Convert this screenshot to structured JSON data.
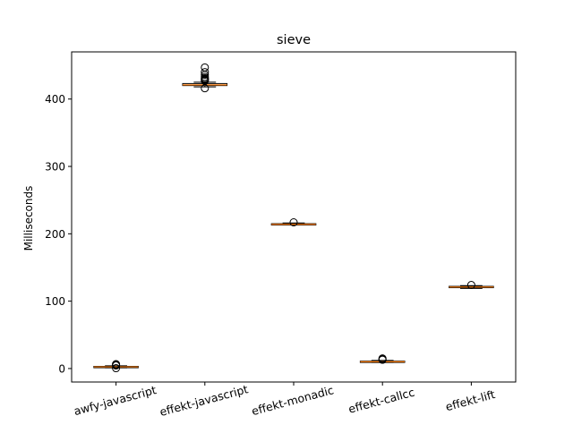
{
  "chart_data": {
    "type": "boxplot",
    "title": "sieve",
    "xlabel": "",
    "ylabel": "Milliseconds",
    "ylim": [
      -20,
      470
    ],
    "yticks": [
      0,
      100,
      200,
      300,
      400
    ],
    "grid": false,
    "legend": "none",
    "categories": [
      "awfy-javascript",
      "effekt-javascript",
      "effekt-monadic",
      "effekt-callcc",
      "effekt-lift"
    ],
    "boxes": [
      {
        "category": "awfy-javascript",
        "whisker_low": 1,
        "q1": 1.5,
        "median": 2.5,
        "q3": 3.2,
        "whisker_high": 4,
        "outliers": [
          0.5,
          4.5,
          5.5,
          6.5
        ]
      },
      {
        "category": "effekt-javascript",
        "whisker_low": 418,
        "q1": 420,
        "median": 421,
        "q3": 423,
        "whisker_high": 425,
        "outliers": [
          416,
          427,
          428,
          429,
          430,
          431,
          433,
          436,
          440,
          447
        ]
      },
      {
        "category": "effekt-monadic",
        "whisker_low": 213,
        "q1": 213.5,
        "median": 214,
        "q3": 215,
        "whisker_high": 216,
        "outliers": [
          217
        ]
      },
      {
        "category": "effekt-callcc",
        "whisker_low": 9,
        "q1": 9.5,
        "median": 10,
        "q3": 11,
        "whisker_high": 12,
        "outliers": [
          13,
          14,
          15
        ]
      },
      {
        "category": "effekt-lift",
        "whisker_low": 119,
        "q1": 120,
        "median": 121,
        "q3": 122,
        "whisker_high": 123,
        "outliers": [
          124
        ]
      }
    ],
    "colors": {
      "box": "#000000",
      "median": "#ff7f0e"
    }
  }
}
